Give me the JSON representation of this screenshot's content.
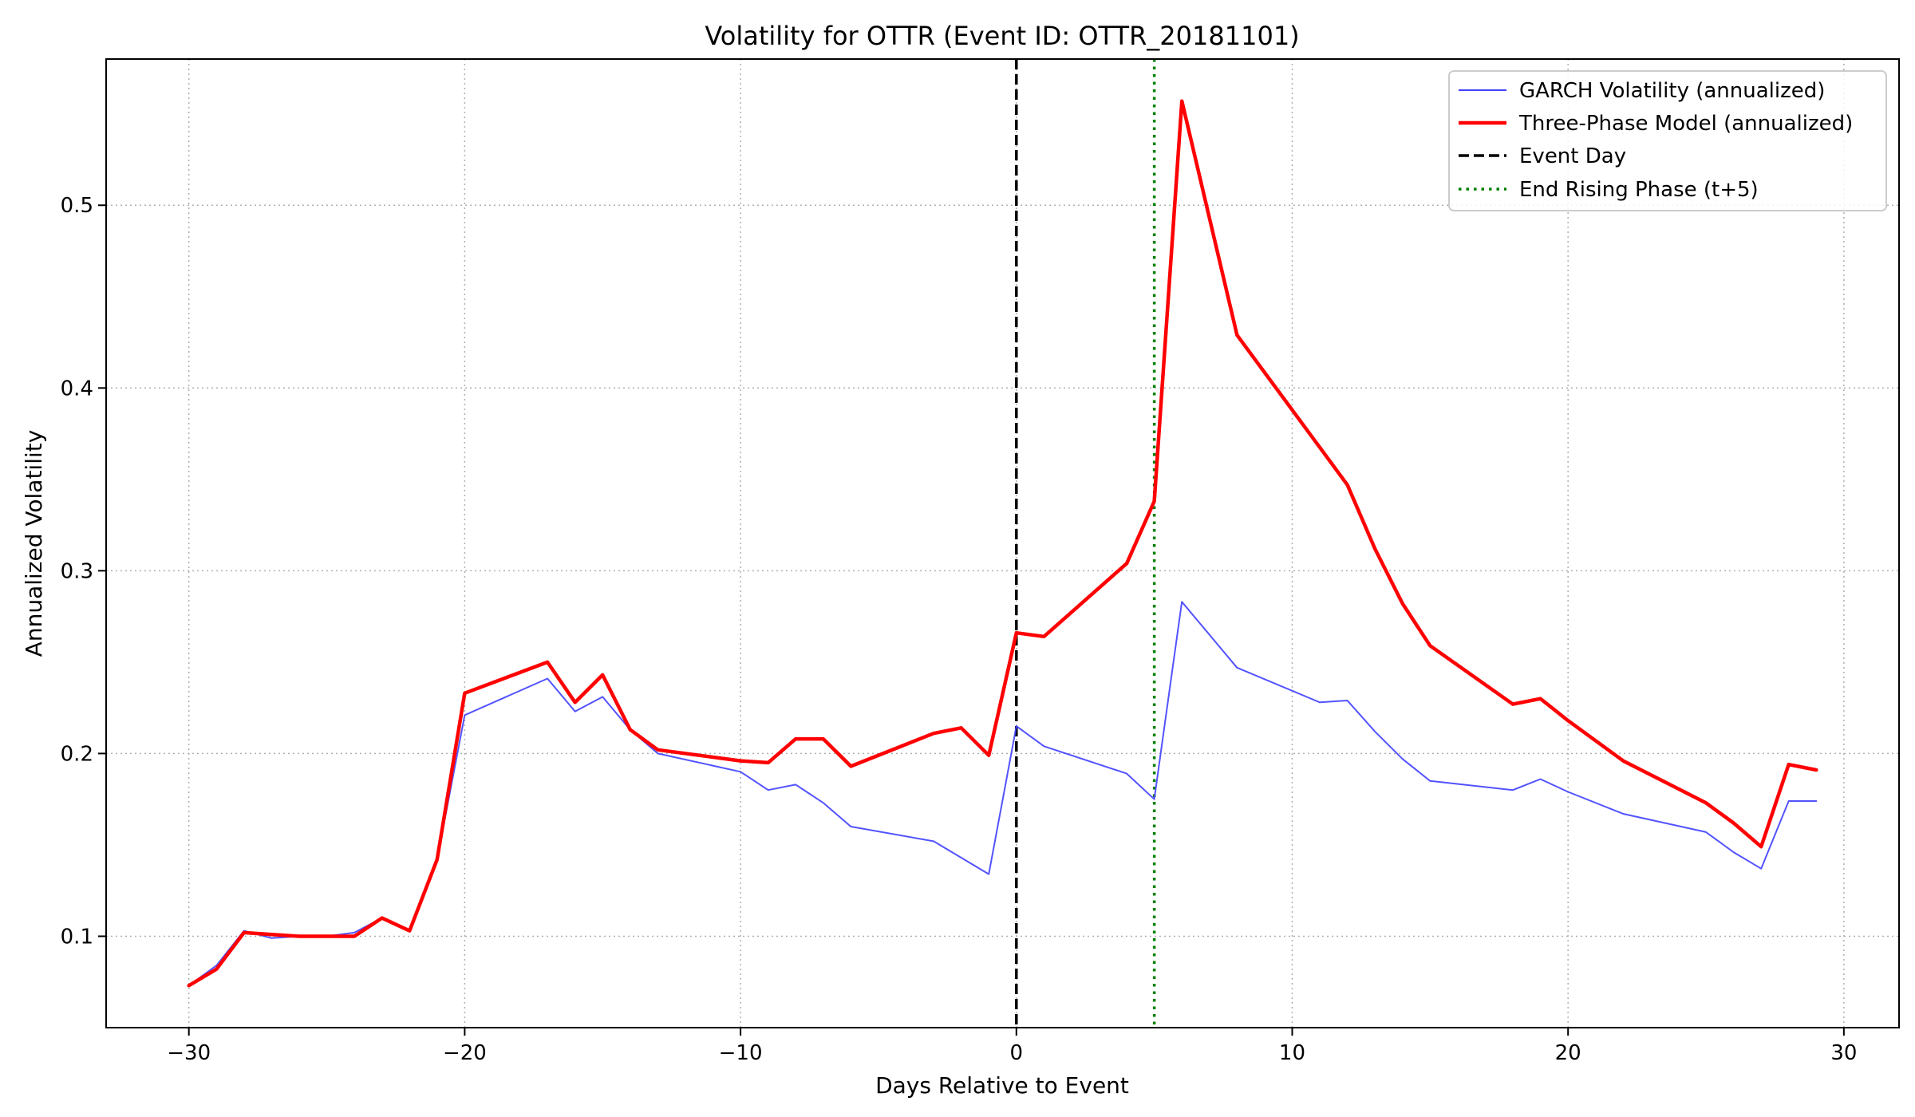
{
  "chart_data": {
    "type": "line",
    "title": "Volatility for OTTR (Event ID: OTTR_20181101)",
    "xlabel": "Days Relative to Event",
    "ylabel": "Annualized Volatility",
    "xlim": [
      -33,
      32
    ],
    "ylim": [
      0.05,
      0.58
    ],
    "xticks": [
      -30,
      -20,
      -10,
      0,
      10,
      20,
      30
    ],
    "xtick_labels": [
      "−30",
      "−20",
      "−10",
      "0",
      "10",
      "20",
      "30"
    ],
    "yticks": [
      0.1,
      0.2,
      0.3,
      0.4,
      0.5
    ],
    "ytick_labels": [
      "0.1",
      "0.2",
      "0.3",
      "0.4",
      "0.5"
    ],
    "grid": true,
    "legend_position": "top-right",
    "colors": {
      "garch": "#4040ff",
      "three_phase": "#ff0000",
      "event_day": "#000000",
      "end_rising": "#008000",
      "grid": "#b0b0b0"
    },
    "vlines": [
      {
        "name": "Event Day",
        "x": 0,
        "style": "dashed",
        "color": "#000000"
      },
      {
        "name": "End Rising Phase (t+5)",
        "x": 5,
        "style": "dotted",
        "color": "#008000"
      }
    ],
    "series": [
      {
        "name": "GARCH Volatility (annualized)",
        "color": "#4040ff",
        "x": [
          -30,
          -29,
          -28,
          -27,
          -26,
          -25,
          -24,
          -23,
          -22,
          -21,
          -20,
          -17,
          -16,
          -15,
          -14,
          -13,
          -10,
          -9,
          -8,
          -7,
          -6,
          -3,
          -1,
          0,
          1,
          4,
          5,
          6,
          8,
          11,
          12,
          13,
          14,
          15,
          18,
          19,
          20,
          22,
          25,
          26,
          27,
          28,
          29
        ],
        "y": [
          0.073,
          0.084,
          0.103,
          0.099,
          0.1,
          0.1,
          0.102,
          0.11,
          0.103,
          0.142,
          0.221,
          0.241,
          0.223,
          0.231,
          0.213,
          0.2,
          0.19,
          0.18,
          0.183,
          0.173,
          0.16,
          0.152,
          0.134,
          0.215,
          0.204,
          0.189,
          0.175,
          0.283,
          0.247,
          0.228,
          0.229,
          0.212,
          0.197,
          0.185,
          0.18,
          0.186,
          0.179,
          0.167,
          0.157,
          0.146,
          0.137,
          0.174,
          0.174
        ]
      },
      {
        "name": "Three-Phase Model (annualized)",
        "color": "#ff0000",
        "x": [
          -30,
          -29,
          -28,
          -27,
          -26,
          -25,
          -24,
          -23,
          -22,
          -21,
          -20,
          -17,
          -16,
          -15,
          -14,
          -13,
          -10,
          -9,
          -8,
          -7,
          -6,
          -3,
          -2,
          -1,
          0,
          1,
          4,
          5,
          6,
          8,
          12,
          13,
          14,
          15,
          18,
          19,
          20,
          22,
          25,
          26,
          27,
          28,
          29
        ],
        "y": [
          0.073,
          0.082,
          0.102,
          0.101,
          0.1,
          0.1,
          0.1,
          0.11,
          0.103,
          0.142,
          0.233,
          0.25,
          0.228,
          0.243,
          0.213,
          0.202,
          0.196,
          0.195,
          0.208,
          0.208,
          0.193,
          0.211,
          0.214,
          0.199,
          0.266,
          0.264,
          0.304,
          0.338,
          0.557,
          0.429,
          0.347,
          0.312,
          0.282,
          0.259,
          0.227,
          0.23,
          0.218,
          0.196,
          0.173,
          0.162,
          0.149,
          0.194,
          0.191
        ]
      }
    ]
  }
}
